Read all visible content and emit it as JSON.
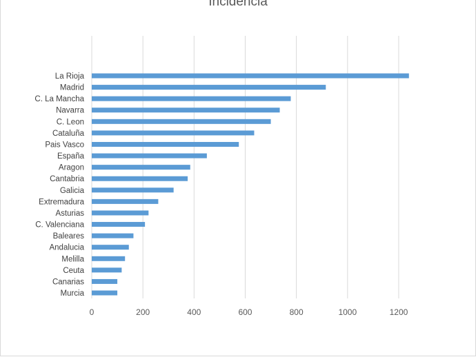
{
  "chart_data": {
    "type": "bar",
    "orientation": "horizontal",
    "title": "Incidencia",
    "xlabel": "",
    "ylabel": "",
    "xlim": [
      0,
      1300
    ],
    "xticks": [
      0,
      200,
      400,
      600,
      800,
      1000,
      1200
    ],
    "grid": "vertical",
    "legend": "none",
    "bar_color": "#5b9bd5",
    "grid_color": "#d9d9d9",
    "categories": [
      "La Rioja",
      "Madrid",
      "C. La Mancha",
      "Navarra",
      "C. Leon",
      "Cataluña",
      "Pais Vasco",
      "España",
      "Aragon",
      "Cantabria",
      "Galicia",
      "Extremadura",
      "Asturias",
      "C. Valenciana",
      "Baleares",
      "Andalucia",
      "Melilla",
      "Ceuta",
      "Canarias",
      "Murcia"
    ],
    "values": [
      1240,
      915,
      778,
      735,
      700,
      635,
      575,
      450,
      385,
      375,
      320,
      260,
      222,
      208,
      163,
      145,
      130,
      117,
      100,
      100
    ]
  }
}
